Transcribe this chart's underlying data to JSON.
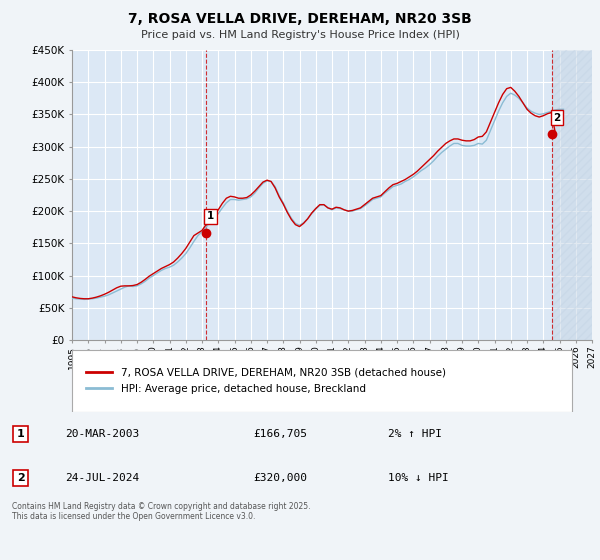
{
  "title": "7, ROSA VELLA DRIVE, DEREHAM, NR20 3SB",
  "subtitle": "Price paid vs. HM Land Registry's House Price Index (HPI)",
  "background_color": "#f0f4f8",
  "plot_bg_color": "#dce8f5",
  "grid_color": "#ffffff",
  "hpi_color": "#8bbcd4",
  "price_color": "#cc0000",
  "marker_color": "#cc0000",
  "vline_color": "#cc0000",
  "future_shade_color": "#c5d5e5",
  "ylim": [
    0,
    450000
  ],
  "xlim_start": 1995.0,
  "xlim_end": 2027.0,
  "yticks": [
    0,
    50000,
    100000,
    150000,
    200000,
    250000,
    300000,
    350000,
    400000,
    450000
  ],
  "ytick_labels": [
    "£0",
    "£50K",
    "£100K",
    "£150K",
    "£200K",
    "£250K",
    "£300K",
    "£350K",
    "£400K",
    "£450K"
  ],
  "xticks": [
    1995,
    1996,
    1997,
    1998,
    1999,
    2000,
    2001,
    2002,
    2003,
    2004,
    2005,
    2006,
    2007,
    2008,
    2009,
    2010,
    2011,
    2012,
    2013,
    2014,
    2015,
    2016,
    2017,
    2018,
    2019,
    2020,
    2021,
    2022,
    2023,
    2024,
    2025,
    2026,
    2027
  ],
  "marker1_x": 2003.22,
  "marker1_y": 166705,
  "marker1_label": "1",
  "marker2_x": 2024.56,
  "marker2_y": 320000,
  "marker2_label": "2",
  "legend_entry1": "7, ROSA VELLA DRIVE, DEREHAM, NR20 3SB (detached house)",
  "legend_entry2": "HPI: Average price, detached house, Breckland",
  "annotation1_label": "1",
  "annotation1_date": "20-MAR-2003",
  "annotation1_price": "£166,705",
  "annotation1_hpi": "2% ↑ HPI",
  "annotation2_label": "2",
  "annotation2_date": "24-JUL-2024",
  "annotation2_price": "£320,000",
  "annotation2_hpi": "10% ↓ HPI",
  "footer": "Contains HM Land Registry data © Crown copyright and database right 2025.\nThis data is licensed under the Open Government Licence v3.0.",
  "hpi_data_x": [
    1995.0,
    1995.25,
    1995.5,
    1995.75,
    1996.0,
    1996.25,
    1996.5,
    1996.75,
    1997.0,
    1997.25,
    1997.5,
    1997.75,
    1998.0,
    1998.25,
    1998.5,
    1998.75,
    1999.0,
    1999.25,
    1999.5,
    1999.75,
    2000.0,
    2000.25,
    2000.5,
    2000.75,
    2001.0,
    2001.25,
    2001.5,
    2001.75,
    2002.0,
    2002.25,
    2002.5,
    2002.75,
    2003.0,
    2003.25,
    2003.5,
    2003.75,
    2004.0,
    2004.25,
    2004.5,
    2004.75,
    2005.0,
    2005.25,
    2005.5,
    2005.75,
    2006.0,
    2006.25,
    2006.5,
    2006.75,
    2007.0,
    2007.25,
    2007.5,
    2007.75,
    2008.0,
    2008.25,
    2008.5,
    2008.75,
    2009.0,
    2009.25,
    2009.5,
    2009.75,
    2010.0,
    2010.25,
    2010.5,
    2010.75,
    2011.0,
    2011.25,
    2011.5,
    2011.75,
    2012.0,
    2012.25,
    2012.5,
    2012.75,
    2013.0,
    2013.25,
    2013.5,
    2013.75,
    2014.0,
    2014.25,
    2014.5,
    2014.75,
    2015.0,
    2015.25,
    2015.5,
    2015.75,
    2016.0,
    2016.25,
    2016.5,
    2016.75,
    2017.0,
    2017.25,
    2017.5,
    2017.75,
    2018.0,
    2018.25,
    2018.5,
    2018.75,
    2019.0,
    2019.25,
    2019.5,
    2019.75,
    2020.0,
    2020.25,
    2020.5,
    2020.75,
    2021.0,
    2021.25,
    2021.5,
    2021.75,
    2022.0,
    2022.25,
    2022.5,
    2022.75,
    2023.0,
    2023.25,
    2023.5,
    2023.75,
    2024.0,
    2024.25,
    2024.5,
    2024.75,
    2025.0,
    2025.25
  ],
  "hpi_data_y": [
    65000,
    64000,
    63500,
    63000,
    63500,
    64000,
    65000,
    66500,
    68000,
    70000,
    73000,
    76000,
    79000,
    82000,
    84000,
    83000,
    84000,
    87000,
    91000,
    96000,
    100000,
    104000,
    108000,
    111000,
    113000,
    116000,
    121000,
    127000,
    134000,
    143000,
    153000,
    162000,
    168000,
    175000,
    183000,
    190000,
    196000,
    205000,
    213000,
    218000,
    218000,
    217000,
    218000,
    219000,
    222000,
    228000,
    236000,
    243000,
    247000,
    246000,
    238000,
    224000,
    213000,
    200000,
    189000,
    181000,
    178000,
    182000,
    188000,
    196000,
    203000,
    209000,
    210000,
    205000,
    202000,
    205000,
    204000,
    202000,
    200000,
    200000,
    202000,
    204000,
    208000,
    213000,
    218000,
    220000,
    222000,
    228000,
    233000,
    238000,
    240000,
    242000,
    246000,
    249000,
    253000,
    258000,
    263000,
    267000,
    272000,
    278000,
    285000,
    291000,
    296000,
    301000,
    305000,
    305000,
    302000,
    301000,
    301000,
    302000,
    305000,
    304000,
    310000,
    325000,
    340000,
    355000,
    368000,
    378000,
    383000,
    380000,
    375000,
    368000,
    360000,
    355000,
    352000,
    350000,
    351000,
    353000,
    355000,
    357000,
    358000,
    358000
  ],
  "price_data_x": [
    1995.0,
    1995.25,
    1995.5,
    1995.75,
    1996.0,
    1996.25,
    1996.5,
    1996.75,
    1997.0,
    1997.25,
    1997.5,
    1997.75,
    1998.0,
    1998.25,
    1998.5,
    1998.75,
    1999.0,
    1999.25,
    1999.5,
    1999.75,
    2000.0,
    2000.25,
    2000.5,
    2000.75,
    2001.0,
    2001.25,
    2001.5,
    2001.75,
    2002.0,
    2002.25,
    2002.5,
    2002.75,
    2003.0,
    2003.25,
    2003.5,
    2003.75,
    2004.0,
    2004.25,
    2004.5,
    2004.75,
    2005.0,
    2005.25,
    2005.5,
    2005.75,
    2006.0,
    2006.25,
    2006.5,
    2006.75,
    2007.0,
    2007.25,
    2007.5,
    2007.75,
    2008.0,
    2008.25,
    2008.5,
    2008.75,
    2009.0,
    2009.25,
    2009.5,
    2009.75,
    2010.0,
    2010.25,
    2010.5,
    2010.75,
    2011.0,
    2011.25,
    2011.5,
    2011.75,
    2012.0,
    2012.25,
    2012.5,
    2012.75,
    2013.0,
    2013.25,
    2013.5,
    2013.75,
    2014.0,
    2014.25,
    2014.5,
    2014.75,
    2015.0,
    2015.25,
    2015.5,
    2015.75,
    2016.0,
    2016.25,
    2016.5,
    2016.75,
    2017.0,
    2017.25,
    2017.5,
    2017.75,
    2018.0,
    2018.25,
    2018.5,
    2018.75,
    2019.0,
    2019.25,
    2019.5,
    2019.75,
    2020.0,
    2020.25,
    2020.5,
    2020.75,
    2021.0,
    2021.25,
    2021.5,
    2021.75,
    2022.0,
    2022.25,
    2022.5,
    2022.75,
    2023.0,
    2023.25,
    2023.5,
    2023.75,
    2024.0,
    2024.25,
    2024.5,
    2024.75
  ],
  "price_data_y": [
    67000,
    65500,
    64500,
    64000,
    64000,
    65000,
    66500,
    68500,
    71000,
    74000,
    77500,
    81000,
    83500,
    84000,
    84000,
    84500,
    86000,
    89500,
    94000,
    99000,
    103000,
    107000,
    111000,
    114000,
    117000,
    121000,
    127000,
    134000,
    142000,
    152000,
    162000,
    166000,
    170000,
    179000,
    188000,
    196000,
    202000,
    212000,
    220000,
    223000,
    222000,
    220000,
    220000,
    221000,
    225000,
    231000,
    238000,
    245000,
    248000,
    246000,
    236000,
    222000,
    211000,
    198000,
    187000,
    179000,
    176000,
    181000,
    188000,
    197000,
    204000,
    210000,
    210000,
    205000,
    203000,
    206000,
    205000,
    202000,
    200000,
    201000,
    203000,
    205000,
    210000,
    215000,
    220000,
    222000,
    224000,
    230000,
    236000,
    241000,
    243000,
    246000,
    249000,
    253000,
    257000,
    262000,
    268000,
    274000,
    280000,
    286000,
    293000,
    299000,
    305000,
    309000,
    312000,
    312000,
    310000,
    309000,
    309000,
    311000,
    315000,
    316000,
    323000,
    338000,
    353000,
    368000,
    381000,
    390000,
    392000,
    386000,
    378000,
    368000,
    358000,
    352000,
    348000,
    346000,
    348000,
    351000,
    353000,
    320000
  ]
}
